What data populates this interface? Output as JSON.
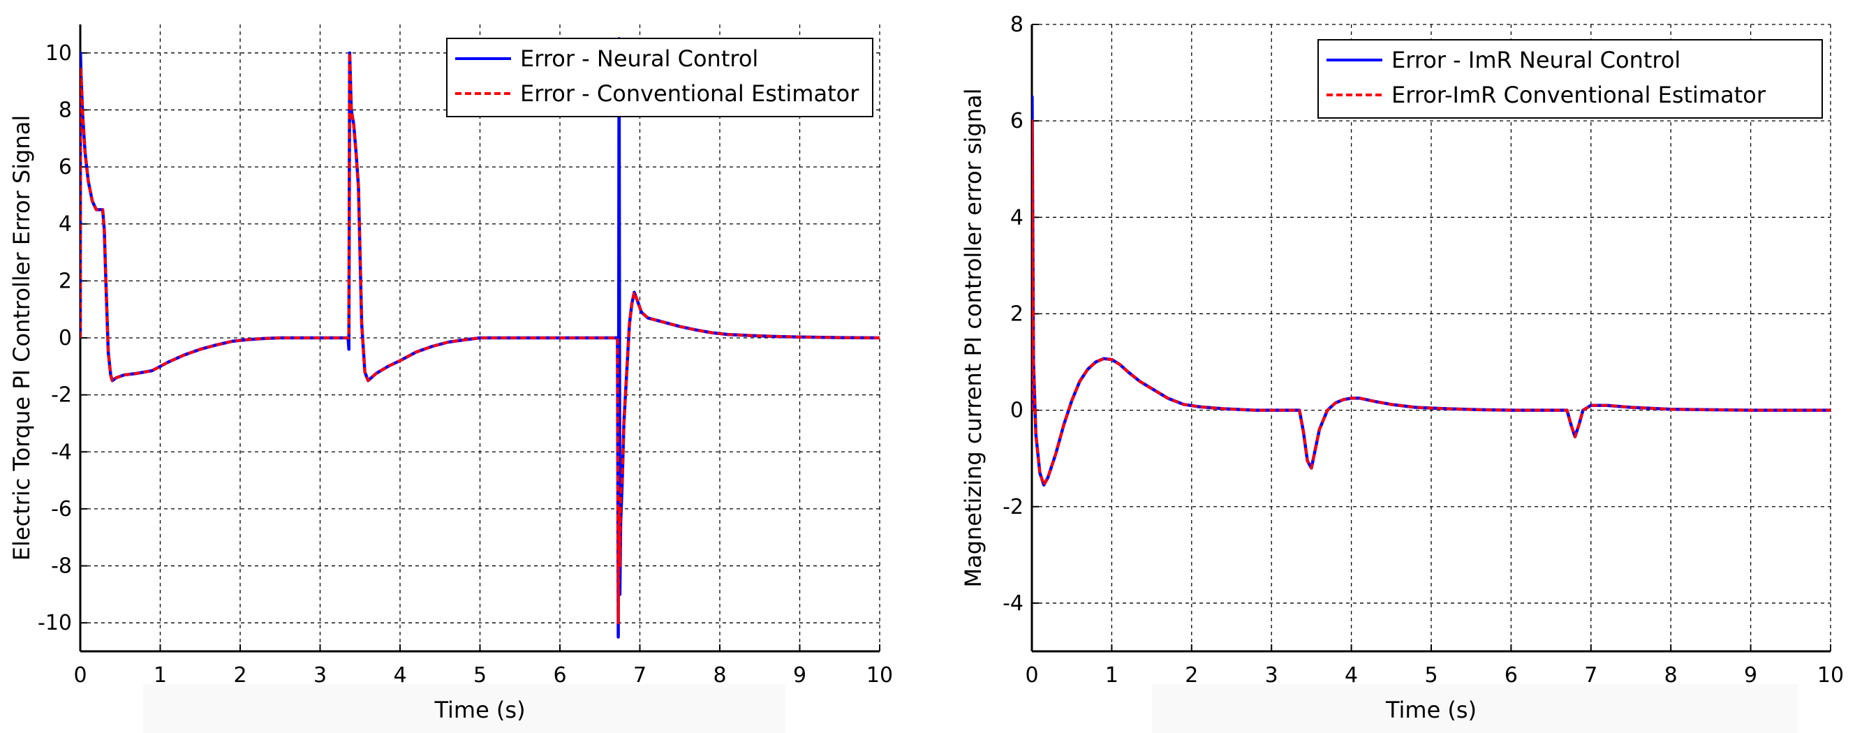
{
  "chart_data": [
    {
      "type": "line",
      "title": "",
      "xlabel": "Time (s)",
      "ylabel": "Electric Torque PI Controller Error Signal",
      "xlim": [
        0,
        10
      ],
      "ylim": [
        -11,
        11
      ],
      "xticks": [
        0,
        1,
        2,
        3,
        4,
        5,
        6,
        7,
        8,
        9,
        10
      ],
      "yticks": [
        -10,
        -8,
        -6,
        -4,
        -2,
        0,
        2,
        4,
        6,
        8,
        10
      ],
      "xtick_labels": [
        "0",
        "1",
        "2",
        "3",
        "4",
        "5",
        "6",
        "7",
        "8",
        "9",
        "10"
      ],
      "ytick_labels": [
        "-10",
        "-8",
        "-6",
        "-4",
        "-2",
        "0",
        "2",
        "4",
        "6",
        "8",
        "10"
      ],
      "grid": true,
      "legend_position": "top-right",
      "series": [
        {
          "name": "Error - Neural Control",
          "color": "#0000ff",
          "style": "solid",
          "x": [
            0,
            0.002,
            0.01,
            0.03,
            0.06,
            0.1,
            0.15,
            0.2,
            0.25,
            0.28,
            0.3,
            0.32,
            0.35,
            0.38,
            0.4,
            0.45,
            0.55,
            0.7,
            0.9,
            1.1,
            1.3,
            1.5,
            1.7,
            1.9,
            2.1,
            2.3,
            2.5,
            2.8,
            3.1,
            3.35,
            3.36,
            3.37,
            3.39,
            3.42,
            3.45,
            3.48,
            3.52,
            3.56,
            3.6,
            3.7,
            3.85,
            4.0,
            4.2,
            4.4,
            4.6,
            4.8,
            5.0,
            5.3,
            5.6,
            6.0,
            6.4,
            6.72,
            6.73,
            6.74,
            6.75,
            6.76,
            6.78,
            6.8,
            6.83,
            6.87,
            6.9,
            6.93,
            6.97,
            7.02,
            7.1,
            7.3,
            7.5,
            7.7,
            7.9,
            8.1,
            8.4,
            8.7,
            9.0,
            9.5,
            10.0
          ],
          "y": [
            0,
            10,
            9.2,
            7.8,
            6.5,
            5.5,
            4.8,
            4.5,
            4.5,
            4.5,
            3.8,
            2.0,
            -0.5,
            -1.3,
            -1.5,
            -1.4,
            -1.3,
            -1.25,
            -1.15,
            -0.85,
            -0.6,
            -0.4,
            -0.25,
            -0.12,
            -0.06,
            -0.02,
            0,
            0,
            0,
            0,
            -0.4,
            10,
            8.0,
            7.5,
            6.5,
            5.3,
            0.5,
            -1.2,
            -1.5,
            -1.25,
            -1.0,
            -0.8,
            -0.5,
            -0.3,
            -0.15,
            -0.07,
            0,
            0,
            0,
            0,
            0,
            0,
            -10.5,
            10.5,
            -9.0,
            -6.5,
            -5.0,
            -3.0,
            -1.5,
            0.5,
            1.2,
            1.6,
            1.3,
            0.9,
            0.7,
            0.55,
            0.4,
            0.28,
            0.18,
            0.12,
            0.08,
            0.05,
            0.03,
            0.01,
            0
          ]
        },
        {
          "name": "Error - Conventional Estimator",
          "color": "#ff0000",
          "style": "dashed",
          "x": [
            0,
            0.002,
            0.01,
            0.03,
            0.06,
            0.1,
            0.15,
            0.2,
            0.25,
            0.28,
            0.3,
            0.32,
            0.35,
            0.38,
            0.4,
            0.45,
            0.55,
            0.7,
            0.9,
            1.1,
            1.3,
            1.5,
            1.7,
            1.9,
            2.1,
            2.3,
            2.5,
            2.8,
            3.1,
            3.35,
            3.36,
            3.37,
            3.39,
            3.42,
            3.45,
            3.48,
            3.52,
            3.56,
            3.6,
            3.7,
            3.85,
            4.0,
            4.2,
            4.4,
            4.6,
            4.8,
            5.0,
            5.3,
            5.6,
            6.0,
            6.4,
            6.72,
            6.73,
            6.74,
            6.75,
            6.76,
            6.78,
            6.8,
            6.83,
            6.87,
            6.9,
            6.93,
            6.97,
            7.02,
            7.1,
            7.3,
            7.5,
            7.7,
            7.9,
            8.1,
            8.4,
            8.7,
            9.0,
            9.5,
            10.0
          ],
          "y": [
            0,
            9.5,
            9.2,
            7.8,
            6.5,
            5.5,
            4.8,
            4.5,
            4.5,
            4.5,
            3.8,
            2.0,
            -0.5,
            -1.3,
            -1.5,
            -1.4,
            -1.3,
            -1.25,
            -1.15,
            -0.85,
            -0.6,
            -0.4,
            -0.25,
            -0.12,
            -0.06,
            -0.02,
            0,
            0,
            0,
            0,
            0,
            10,
            8.0,
            7.5,
            6.5,
            5.3,
            0.5,
            -1.2,
            -1.5,
            -1.25,
            -1.0,
            -0.8,
            -0.5,
            -0.3,
            -0.15,
            -0.07,
            0,
            0,
            0,
            0,
            0,
            0,
            -10,
            -6.0,
            -8.0,
            -5.5,
            -5.0,
            -3.0,
            -1.5,
            0.5,
            1.2,
            1.6,
            1.3,
            0.9,
            0.7,
            0.55,
            0.4,
            0.28,
            0.18,
            0.12,
            0.08,
            0.05,
            0.03,
            0.01,
            0
          ]
        }
      ]
    },
    {
      "type": "line",
      "title": "",
      "xlabel": "Time (s)",
      "ylabel": "Magnetizing current PI controller error signal",
      "xlim": [
        0,
        10
      ],
      "ylim": [
        -5,
        8
      ],
      "xticks": [
        0,
        1,
        2,
        3,
        4,
        5,
        6,
        7,
        8,
        9,
        10
      ],
      "yticks": [
        -4,
        -2,
        0,
        2,
        4,
        6,
        8
      ],
      "xtick_labels": [
        "0",
        "1",
        "2",
        "3",
        "4",
        "5",
        "6",
        "7",
        "8",
        "9",
        "10"
      ],
      "ytick_labels": [
        "-4",
        "-2",
        "0",
        "2",
        "4",
        "6",
        "8"
      ],
      "grid": true,
      "legend_position": "top-right",
      "series": [
        {
          "name": "Error - ImR Neural Control",
          "color": "#0000ff",
          "style": "solid",
          "x": [
            0,
            0.003,
            0.02,
            0.05,
            0.1,
            0.15,
            0.2,
            0.3,
            0.4,
            0.5,
            0.6,
            0.7,
            0.8,
            0.9,
            1.0,
            1.1,
            1.2,
            1.35,
            1.5,
            1.7,
            1.9,
            2.1,
            2.4,
            2.8,
            3.3,
            3.35,
            3.4,
            3.45,
            3.5,
            3.55,
            3.6,
            3.7,
            3.8,
            3.9,
            4.0,
            4.1,
            4.3,
            4.5,
            4.8,
            5.2,
            5.6,
            6.0,
            6.5,
            6.7,
            6.75,
            6.8,
            6.85,
            6.9,
            7.0,
            7.2,
            7.5,
            8.0,
            9.0,
            10.0
          ],
          "y": [
            0,
            6.5,
            1.0,
            -0.5,
            -1.3,
            -1.55,
            -1.4,
            -0.9,
            -0.3,
            0.2,
            0.6,
            0.85,
            1.0,
            1.07,
            1.05,
            0.95,
            0.8,
            0.6,
            0.45,
            0.25,
            0.12,
            0.07,
            0.03,
            0,
            0,
            0,
            -0.45,
            -1.05,
            -1.2,
            -0.8,
            -0.4,
            0.0,
            0.15,
            0.22,
            0.25,
            0.25,
            0.18,
            0.12,
            0.06,
            0.03,
            0.01,
            0,
            0,
            0,
            -0.3,
            -0.55,
            -0.3,
            0,
            0.1,
            0.1,
            0.06,
            0.02,
            0,
            0
          ]
        },
        {
          "name": "Error-ImR Conventional Estimator",
          "color": "#ff0000",
          "style": "dashed",
          "x": [
            0,
            0.003,
            0.02,
            0.05,
            0.1,
            0.15,
            0.2,
            0.3,
            0.4,
            0.5,
            0.6,
            0.7,
            0.8,
            0.9,
            1.0,
            1.1,
            1.2,
            1.35,
            1.5,
            1.7,
            1.9,
            2.1,
            2.4,
            2.8,
            3.3,
            3.35,
            3.4,
            3.45,
            3.5,
            3.55,
            3.6,
            3.7,
            3.8,
            3.9,
            4.0,
            4.1,
            4.3,
            4.5,
            4.8,
            5.2,
            5.6,
            6.0,
            6.5,
            6.7,
            6.75,
            6.8,
            6.85,
            6.9,
            7.0,
            7.2,
            7.5,
            8.0,
            9.0,
            10.0
          ],
          "y": [
            0,
            6.0,
            1.0,
            -0.5,
            -1.3,
            -1.55,
            -1.4,
            -0.9,
            -0.3,
            0.2,
            0.6,
            0.85,
            1.0,
            1.07,
            1.05,
            0.95,
            0.8,
            0.6,
            0.45,
            0.25,
            0.12,
            0.07,
            0.03,
            0,
            0,
            0,
            -0.45,
            -1.05,
            -1.2,
            -0.8,
            -0.4,
            0.0,
            0.15,
            0.22,
            0.25,
            0.25,
            0.18,
            0.12,
            0.06,
            0.03,
            0.01,
            0,
            0,
            0,
            -0.3,
            -0.55,
            -0.3,
            0,
            0.1,
            0.1,
            0.06,
            0.02,
            0,
            0
          ]
        }
      ]
    }
  ]
}
